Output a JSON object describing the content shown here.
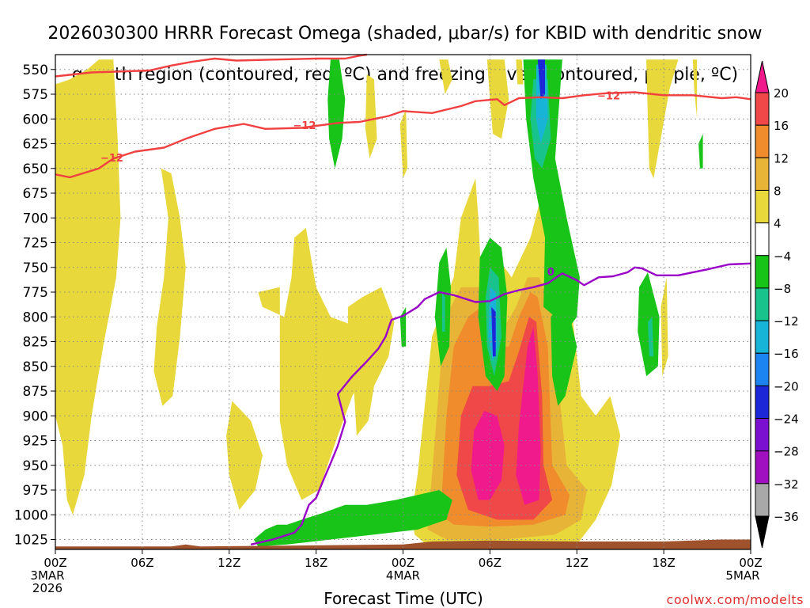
{
  "chart_data": {
    "type": "heatmap",
    "title_line1": "2026030300 HRRR Forecast Omega (shaded, μbar/s) for KBID with dendritic snow",
    "title_line2": "growth region (contoured, red, ºC) and freezing level (contoured, purple, ºC)",
    "xlabel": "Forecast Time (UTC)",
    "y_ticks": [
      550,
      575,
      600,
      625,
      650,
      675,
      700,
      725,
      750,
      775,
      800,
      825,
      850,
      875,
      900,
      925,
      950,
      975,
      1000,
      1025
    ],
    "y_tick_labels": [
      "550",
      "575",
      "600",
      "625",
      "650",
      "675",
      "700",
      "725",
      "750",
      "775",
      "800",
      "825",
      "850",
      "875",
      "900",
      "925",
      "950",
      "975",
      "1000",
      "1025"
    ],
    "ylim": [
      1035,
      535
    ],
    "x_range_hours": [
      0,
      48
    ],
    "x_ticks": [
      {
        "hour": 0,
        "lines": [
          "00Z",
          "3MAR",
          "2026"
        ]
      },
      {
        "hour": 6,
        "lines": [
          "06Z"
        ]
      },
      {
        "hour": 12,
        "lines": [
          "12Z"
        ]
      },
      {
        "hour": 18,
        "lines": [
          "18Z"
        ]
      },
      {
        "hour": 24,
        "lines": [
          "00Z",
          "4MAR"
        ]
      },
      {
        "hour": 30,
        "lines": [
          "06Z"
        ]
      },
      {
        "hour": 36,
        "lines": [
          "12Z"
        ]
      },
      {
        "hour": 42,
        "lines": [
          "18Z"
        ]
      },
      {
        "hour": 48,
        "lines": [
          "00Z",
          "5MAR"
        ]
      }
    ],
    "colorbar": {
      "labels": [
        "20",
        "16",
        "12",
        "8",
        "4",
        "−4",
        "−8",
        "−12",
        "−16",
        "−20",
        "−24",
        "−28",
        "−32",
        "−36"
      ],
      "colors": [
        "#f01a8c",
        "#f04848",
        "#f08c2c",
        "#e8b438",
        "#e8d83c",
        "#ffffff",
        "#18c418",
        "#18c48c",
        "#18b4d8",
        "#1c84f0",
        "#1c28d8",
        "#7c10d0",
        "#a010c0",
        "#a8a8a8"
      ],
      "top_arrow_color": "#f01a8c",
      "bottom_arrow_color": "#000000"
    },
    "series": [
      {
        "name": "dendritic growth -12C (upper)",
        "color": "#f04040",
        "points": [
          [
            0,
            557
          ],
          [
            2.5,
            553
          ],
          [
            4.5,
            552
          ],
          [
            6.5,
            551
          ],
          [
            8,
            546
          ],
          [
            9.5,
            542
          ],
          [
            11,
            539
          ],
          [
            12.5,
            541
          ],
          [
            15,
            540
          ],
          [
            18,
            539
          ],
          [
            20,
            539
          ],
          [
            21,
            536
          ],
          [
            21.5,
            535
          ]
        ]
      },
      {
        "name": "dendritic growth -12C (lower)",
        "color": "#f04040",
        "points": [
          [
            0,
            656
          ],
          [
            1,
            659
          ],
          [
            3,
            650
          ],
          [
            4,
            640
          ],
          [
            5.5,
            633
          ],
          [
            7.5,
            629
          ],
          [
            9,
            620
          ],
          [
            11,
            610
          ],
          [
            13,
            605
          ],
          [
            14.5,
            610
          ],
          [
            17,
            609
          ],
          [
            19.5,
            604
          ],
          [
            21,
            603
          ],
          [
            22,
            600
          ],
          [
            23,
            597
          ],
          [
            24,
            592
          ],
          [
            26,
            594
          ],
          [
            28,
            587
          ],
          [
            29,
            582
          ],
          [
            30.5,
            580
          ],
          [
            31,
            586
          ],
          [
            32,
            579
          ],
          [
            33.5,
            578
          ],
          [
            35,
            579
          ],
          [
            36.5,
            576
          ],
          [
            38,
            574
          ],
          [
            40,
            573
          ],
          [
            42,
            576
          ],
          [
            44,
            576
          ],
          [
            46,
            579
          ],
          [
            47,
            578
          ],
          [
            48,
            580
          ]
        ]
      },
      {
        "name": "freezing level 0C",
        "color": "#9a00c8",
        "points": [
          [
            13.5,
            1030
          ],
          [
            15,
            1025
          ],
          [
            16.5,
            1018
          ],
          [
            17,
            1010
          ],
          [
            17.5,
            990
          ],
          [
            18,
            983
          ],
          [
            18.5,
            965
          ],
          [
            19,
            948
          ],
          [
            19.5,
            930
          ],
          [
            20,
            906
          ],
          [
            19.5,
            878
          ],
          [
            20.5,
            860
          ],
          [
            21.5,
            845
          ],
          [
            22.3,
            832
          ],
          [
            22.8,
            820
          ],
          [
            23.2,
            803
          ],
          [
            24,
            799
          ],
          [
            25,
            790
          ],
          [
            25.5,
            782
          ],
          [
            26.5,
            775
          ],
          [
            27.5,
            778
          ],
          [
            29,
            785
          ],
          [
            30,
            784
          ],
          [
            31,
            777
          ],
          [
            32,
            773
          ],
          [
            33,
            770
          ],
          [
            34,
            766
          ],
          [
            35,
            756
          ],
          [
            36,
            763
          ],
          [
            36.5,
            768
          ],
          [
            37.5,
            760
          ],
          [
            38.5,
            759
          ],
          [
            39.5,
            755
          ],
          [
            40,
            750
          ],
          [
            40.5,
            751
          ],
          [
            41.5,
            758
          ],
          [
            43,
            758
          ],
          [
            45,
            752
          ],
          [
            46.5,
            747
          ],
          [
            48,
            746
          ]
        ]
      }
    ],
    "contour_labels": [
      {
        "text": "−12",
        "hour": 3.9,
        "p": 639,
        "color": "#f04040"
      },
      {
        "text": "−12",
        "hour": 17.2,
        "p": 606,
        "color": "#f04040"
      },
      {
        "text": "−12",
        "hour": 38.2,
        "p": 576,
        "color": "#f04040"
      },
      {
        "text": "0",
        "hour": 34.2,
        "p": 754,
        "color": "#9a00c8"
      }
    ],
    "shaded_regions_note": "Omega shading: warm colors indicate rising motion magnitude (μbar/s), greens/blues indicate the opposite sign."
  },
  "watermark": "coolwx.com/modelts"
}
